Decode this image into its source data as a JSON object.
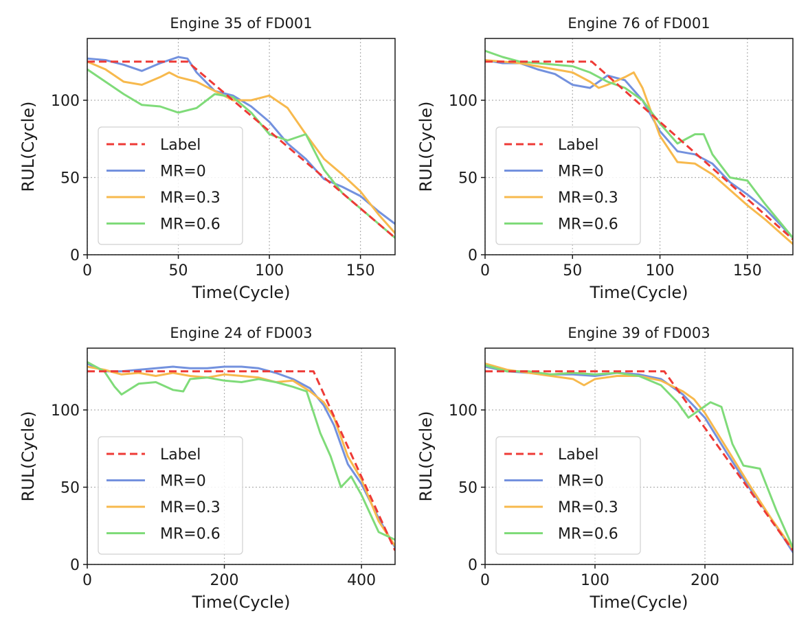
{
  "colors": {
    "label": "#ee3a36",
    "mr0": "#7391de",
    "mr03": "#f7b94d",
    "mr06": "#7fdb79",
    "grid": "#b0b0b0",
    "axis": "#1a1a1a"
  },
  "chart_data": [
    {
      "type": "line",
      "title": "Engine 35 of FD001",
      "xlabel": "Time(Cycle)",
      "ylabel": "RUL(Cycle)",
      "xlim": [
        0,
        169
      ],
      "ylim": [
        0,
        140
      ],
      "xticks": [
        0,
        50,
        100,
        150
      ],
      "yticks": [
        0,
        50,
        100
      ],
      "grid": true,
      "legend_position": "lower-left",
      "series": [
        {
          "name": "Label",
          "style": "dashed",
          "color_key": "label",
          "x": [
            0,
            55,
            169
          ],
          "y": [
            125,
            125,
            11
          ]
        },
        {
          "name": "MR=0",
          "color_key": "mr0",
          "x": [
            0,
            10,
            20,
            30,
            40,
            50,
            55,
            60,
            70,
            80,
            90,
            100,
            110,
            120,
            130,
            140,
            150,
            160,
            169
          ],
          "y": [
            127,
            126,
            123,
            119,
            124,
            128,
            127,
            118,
            106,
            103,
            96,
            86,
            72,
            62,
            49,
            44,
            38,
            28,
            20
          ]
        },
        {
          "name": "MR=0.3",
          "color_key": "mr03",
          "x": [
            0,
            10,
            20,
            30,
            40,
            45,
            50,
            60,
            70,
            80,
            90,
            100,
            110,
            120,
            130,
            140,
            150,
            160,
            169
          ],
          "y": [
            125,
            120,
            112,
            110,
            115,
            118,
            115,
            112,
            106,
            100,
            100,
            103,
            95,
            78,
            62,
            52,
            41,
            26,
            14
          ]
        },
        {
          "name": "MR=0.6",
          "color_key": "mr06",
          "x": [
            0,
            10,
            20,
            30,
            40,
            50,
            60,
            70,
            80,
            90,
            100,
            110,
            120,
            130,
            140,
            150,
            160,
            169
          ],
          "y": [
            120,
            112,
            104,
            97,
            96,
            92,
            95,
            104,
            102,
            92,
            78,
            74,
            78,
            55,
            40,
            30,
            20,
            11
          ]
        }
      ]
    },
    {
      "type": "line",
      "title": "Engine 76 of FD001",
      "xlabel": "Time(Cycle)",
      "ylabel": "RUL(Cycle)",
      "xlim": [
        0,
        176
      ],
      "ylim": [
        0,
        140
      ],
      "xticks": [
        0,
        50,
        100,
        150
      ],
      "yticks": [
        0,
        50,
        100
      ],
      "grid": true,
      "legend_position": "lower-left",
      "series": [
        {
          "name": "Label",
          "style": "dashed",
          "color_key": "label",
          "x": [
            0,
            61,
            176
          ],
          "y": [
            125,
            125,
            10
          ]
        },
        {
          "name": "MR=0",
          "color_key": "mr0",
          "x": [
            0,
            10,
            20,
            30,
            40,
            50,
            60,
            70,
            80,
            90,
            100,
            110,
            120,
            130,
            140,
            150,
            160,
            176
          ],
          "y": [
            126,
            124,
            124,
            120,
            117,
            110,
            108,
            116,
            113,
            100,
            80,
            67,
            65,
            59,
            47,
            39,
            30,
            11
          ]
        },
        {
          "name": "MR=0.3",
          "color_key": "mr03",
          "x": [
            0,
            10,
            20,
            30,
            40,
            50,
            60,
            65,
            70,
            80,
            85,
            90,
            100,
            110,
            120,
            130,
            140,
            150,
            160,
            176
          ],
          "y": [
            126,
            125,
            124,
            122,
            120,
            118,
            112,
            108,
            110,
            115,
            118,
            108,
            77,
            60,
            59,
            52,
            42,
            32,
            23,
            7
          ]
        },
        {
          "name": "MR=0.6",
          "color_key": "mr06",
          "x": [
            0,
            10,
            20,
            30,
            40,
            50,
            60,
            65,
            70,
            80,
            90,
            100,
            110,
            120,
            125,
            130,
            140,
            150,
            160,
            176
          ],
          "y": [
            132,
            128,
            125,
            124,
            123,
            122,
            118,
            115,
            112,
            108,
            100,
            85,
            72,
            78,
            78,
            65,
            50,
            48,
            33,
            11
          ]
        }
      ]
    },
    {
      "type": "line",
      "title": "Engine 24 of FD003",
      "xlabel": "Time(Cycle)",
      "ylabel": "RUL(Cycle)",
      "xlim": [
        0,
        449
      ],
      "ylim": [
        0,
        140
      ],
      "xticks": [
        0,
        200,
        400
      ],
      "yticks": [
        0,
        50,
        100
      ],
      "grid": true,
      "legend_position": "lower-left",
      "series": [
        {
          "name": "Label",
          "style": "dashed",
          "color_key": "label",
          "x": [
            0,
            330,
            449
          ],
          "y": [
            125,
            125,
            9
          ]
        },
        {
          "name": "MR=0",
          "color_key": "mr0",
          "x": [
            0,
            25,
            50,
            75,
            100,
            125,
            150,
            175,
            200,
            225,
            250,
            275,
            300,
            325,
            345,
            360,
            380,
            400,
            425,
            449
          ],
          "y": [
            130,
            125,
            125,
            126,
            127,
            128,
            127,
            127,
            128,
            128,
            127,
            124,
            120,
            114,
            103,
            90,
            65,
            52,
            30,
            11
          ]
        },
        {
          "name": "MR=0.3",
          "color_key": "mr03",
          "x": [
            0,
            25,
            50,
            75,
            100,
            125,
            150,
            175,
            200,
            225,
            250,
            275,
            300,
            325,
            345,
            360,
            380,
            400,
            425,
            449
          ],
          "y": [
            128,
            126,
            123,
            124,
            122,
            124,
            122,
            121,
            123,
            122,
            121,
            118,
            119,
            112,
            105,
            95,
            70,
            55,
            28,
            12
          ]
        },
        {
          "name": "MR=0.6",
          "color_key": "mr06",
          "x": [
            0,
            25,
            40,
            50,
            75,
            100,
            125,
            140,
            150,
            175,
            200,
            225,
            250,
            275,
            300,
            320,
            340,
            355,
            370,
            385,
            400,
            425,
            449
          ],
          "y": [
            131,
            125,
            115,
            110,
            117,
            118,
            113,
            112,
            120,
            121,
            119,
            118,
            120,
            118,
            115,
            112,
            85,
            70,
            50,
            57,
            45,
            21,
            16
          ]
        }
      ]
    },
    {
      "type": "line",
      "title": "Engine 39 of FD003",
      "xlabel": "Time(Cycle)",
      "ylabel": "RUL(Cycle)",
      "xlim": [
        0,
        280
      ],
      "ylim": [
        0,
        140
      ],
      "xticks": [
        0,
        100,
        200
      ],
      "yticks": [
        0,
        50,
        100
      ],
      "grid": true,
      "legend_position": "lower-left",
      "series": [
        {
          "name": "Label",
          "style": "dashed",
          "color_key": "label",
          "x": [
            0,
            163,
            280
          ],
          "y": [
            125,
            125,
            9
          ]
        },
        {
          "name": "MR=0",
          "color_key": "mr0",
          "x": [
            0,
            20,
            40,
            60,
            80,
            100,
            120,
            140,
            160,
            180,
            200,
            220,
            240,
            260,
            280
          ],
          "y": [
            128,
            125,
            124,
            123,
            123,
            122,
            124,
            123,
            120,
            110,
            95,
            72,
            50,
            30,
            8
          ]
        },
        {
          "name": "MR=0.3",
          "color_key": "mr03",
          "x": [
            0,
            20,
            40,
            60,
            80,
            90,
            100,
            120,
            140,
            160,
            180,
            190,
            200,
            220,
            240,
            260,
            280
          ],
          "y": [
            130,
            126,
            124,
            122,
            120,
            116,
            120,
            122,
            122,
            119,
            112,
            107,
            98,
            75,
            52,
            30,
            10
          ]
        },
        {
          "name": "MR=0.6",
          "color_key": "mr06",
          "x": [
            0,
            20,
            40,
            60,
            80,
            100,
            120,
            140,
            160,
            175,
            185,
            195,
            205,
            215,
            225,
            235,
            250,
            265,
            280
          ],
          "y": [
            129,
            125,
            125,
            123,
            124,
            123,
            124,
            122,
            116,
            105,
            95,
            100,
            105,
            102,
            78,
            64,
            62,
            35,
            11
          ]
        }
      ]
    }
  ]
}
